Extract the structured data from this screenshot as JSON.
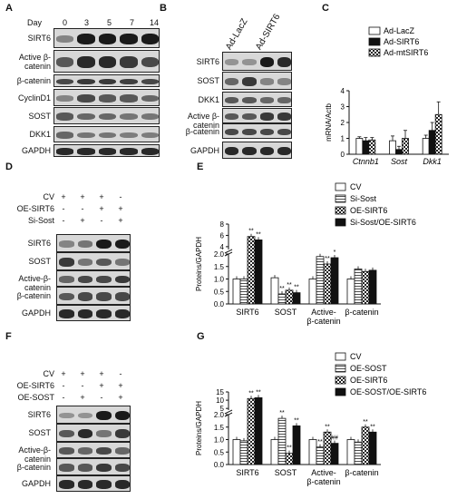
{
  "panels": {
    "A": {
      "label": "A",
      "day_label": "Day",
      "days": [
        "0",
        "3",
        "5",
        "7",
        "14"
      ],
      "rows": [
        "SIRT6",
        "Active β-catenin",
        "β-catenin",
        "CyclinD1",
        "SOST",
        "DKK1",
        "GAPDH"
      ]
    },
    "B": {
      "label": "B",
      "headers": [
        "Ad-LacZ",
        "Ad-SIRT6"
      ],
      "rows": [
        "SIRT6",
        "SOST",
        "DKK1",
        "Active β-catenin",
        "β-catenin",
        "GAPDH"
      ]
    },
    "C": {
      "label": "C"
    },
    "D": {
      "label": "D",
      "conds": [
        "CV",
        "OE-SIRT6",
        "Si-Sost"
      ],
      "marks": [
        [
          "+",
          "+",
          "+",
          "-"
        ],
        [
          "-",
          "-",
          "+",
          "+"
        ],
        [
          "-",
          "+",
          "-",
          "+"
        ]
      ],
      "rows": [
        "SIRT6",
        "SOST",
        "Active-β-catenin",
        "β-catenin",
        "GAPDH"
      ]
    },
    "E": {
      "label": "E"
    },
    "F": {
      "label": "F",
      "conds": [
        "CV",
        "OE-SIRT6",
        "OE-SOST"
      ],
      "marks": [
        [
          "+",
          "+",
          "+",
          "-"
        ],
        [
          "-",
          "-",
          "+",
          "+"
        ],
        [
          "-",
          "+",
          "-",
          "+"
        ]
      ],
      "rows": [
        "SIRT6",
        "SOST",
        "Active-β-catenin",
        "β-catenin",
        "GAPDH"
      ]
    },
    "G": {
      "label": "G"
    }
  },
  "chart_data": [
    {
      "panel": "C",
      "type": "bar",
      "ylabel": "mRNA/Actb",
      "ylim": [
        0,
        4
      ],
      "yticks": [
        "0",
        "1",
        "2",
        "3",
        "4"
      ],
      "categories": [
        "Ctnnb1",
        "Sost",
        "Dkk1"
      ],
      "series": [
        {
          "name": "Ad-LacZ",
          "values": [
            1.0,
            0.85,
            1.0
          ],
          "err": [
            0.1,
            0.3,
            0.2
          ]
        },
        {
          "name": "Ad-SIRT6",
          "values": [
            0.85,
            0.3,
            1.5
          ],
          "err": [
            0.2,
            0.2,
            0.5
          ]
        },
        {
          "name": "Ad-mtSIRT6",
          "values": [
            0.9,
            1.0,
            2.5
          ],
          "err": [
            0.15,
            0.5,
            0.8
          ]
        }
      ],
      "legend": "top-right"
    },
    {
      "panel": "E",
      "type": "bar",
      "ylabel": "Proteins/GAPDH",
      "broken_axis": true,
      "yticks": [
        "0.0",
        "0.5",
        "1.0",
        "1.5",
        "2.0",
        "4",
        "6",
        "8"
      ],
      "categories": [
        "SIRT6",
        "SOST",
        "Active-\nβ-catenin",
        "β-catenin"
      ],
      "series": [
        {
          "name": "CV",
          "values": [
            1.0,
            1.05,
            1.0,
            1.0
          ]
        },
        {
          "name": "Si-Sost",
          "values": [
            1.0,
            0.4,
            1.9,
            1.4
          ]
        },
        {
          "name": "OE-SIRT6",
          "values": [
            5.8,
            0.55,
            1.6,
            1.3
          ]
        },
        {
          "name": "Si-Sost/OE-SIRT6",
          "values": [
            5.2,
            0.45,
            2.05,
            1.35
          ]
        }
      ],
      "annotations": [
        [
          "",
          "",
          "**",
          "**"
        ],
        [
          "",
          "**",
          "**",
          "**"
        ],
        [
          "",
          "",
          "**",
          "*"
        ],
        [
          "",
          "",
          "",
          ""
        ]
      ],
      "legend": "top-right"
    },
    {
      "panel": "G",
      "type": "bar",
      "ylabel": "Proteins/GAPDH",
      "broken_axis": true,
      "yticks": [
        "0.0",
        "0.5",
        "1.0",
        "1.5",
        "2.0",
        "5",
        "10",
        "15"
      ],
      "categories": [
        "SIRT6",
        "SOST",
        "Active-\nβ-catenin",
        "β-catenin"
      ],
      "series": [
        {
          "name": "CV",
          "values": [
            1.0,
            1.0,
            1.0,
            1.0
          ]
        },
        {
          "name": "OE-SOST",
          "values": [
            0.95,
            1.85,
            0.7,
            0.9
          ]
        },
        {
          "name": "OE-SIRT6",
          "values": [
            11.0,
            0.45,
            1.3,
            1.5
          ]
        },
        {
          "name": "OE-SOST/OE-SIRT6",
          "values": [
            11.5,
            1.55,
            0.85,
            1.3
          ]
        }
      ],
      "annotations": [
        [
          "",
          "",
          "**",
          "**"
        ],
        [
          "",
          "**",
          "**",
          "**"
        ],
        [
          "",
          "**",
          "**",
          "##"
        ],
        [
          "",
          "",
          "**",
          "**"
        ]
      ],
      "legend": "top-right"
    }
  ],
  "legend_texts": {
    "C": [
      "Ad-LacZ",
      "Ad-SIRT6",
      "Ad-mtSIRT6"
    ],
    "E": [
      "CV",
      "Si-Sost",
      "OE-SIRT6",
      "Si-Sost/OE-SIRT6"
    ],
    "G": [
      "CV",
      "OE-SOST",
      "OE-SIRT6",
      "OE-SOST/OE-SIRT6"
    ]
  }
}
